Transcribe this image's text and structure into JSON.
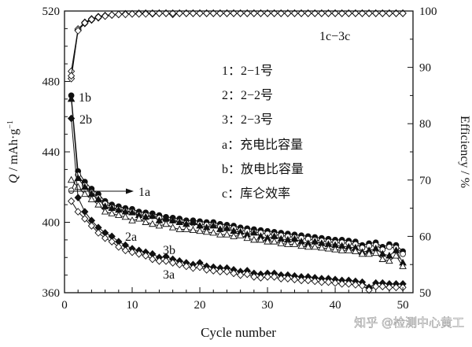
{
  "chart_data": {
    "type": "line",
    "xlabel": "Cycle number",
    "ylabel": "Q / mAh·g⁻¹",
    "ylabel_italic_part": "Q",
    "ylabel_rest": " / mAh·g",
    "ylabel_sup": "−1",
    "y2label": "Efficiency / %",
    "xlim": [
      0,
      51.5
    ],
    "ylim": [
      360,
      520
    ],
    "y2lim": [
      50,
      100
    ],
    "xticks": [
      0,
      10,
      20,
      30,
      40,
      50
    ],
    "yticks": [
      360,
      400,
      440,
      480,
      520
    ],
    "y2ticks": [
      50,
      60,
      70,
      80,
      90,
      100
    ],
    "grid": false,
    "legend": {
      "placement": "top-center",
      "items": [
        "1：2−1号",
        "2：2−2号",
        "3：2−3号",
        "a：充电比容量",
        "b：放电比容量",
        "c：库仑效率"
      ]
    },
    "annotations": {
      "1b": "1b",
      "2b": "2b",
      "1a": "1a",
      "2a": "2a",
      "3b": "3b",
      "3a": "3a",
      "c": "1c−3c"
    },
    "series": [
      {
        "name": "1b",
        "axis": "left",
        "marker": "circle-filled",
        "values": [
          472,
          429,
          423,
          419,
          416,
          412,
          410,
          409,
          408,
          407.5,
          406,
          405.5,
          405,
          404,
          403,
          402.5,
          402,
          401,
          401,
          400.5,
          400,
          400,
          399,
          398.5,
          398,
          397,
          396.5,
          396,
          395.5,
          395,
          394.5,
          394,
          393.5,
          393,
          392.5,
          392,
          391.5,
          391,
          390.5,
          390,
          390,
          389.5,
          389,
          387,
          388,
          388.5,
          386,
          387.5,
          387,
          383.5
        ]
      },
      {
        "name": "1a",
        "axis": "left",
        "marker": "circle-open",
        "values": [
          418,
          427,
          421,
          417,
          414,
          410.5,
          408.5,
          407.5,
          406.5,
          406,
          404.5,
          404,
          403.5,
          402.5,
          401.5,
          401,
          400.5,
          399.5,
          399.5,
          399,
          398.5,
          398.5,
          397.5,
          397,
          396.5,
          395.5,
          395,
          394.5,
          394,
          393.5,
          393,
          392.5,
          392,
          391.5,
          391,
          390.5,
          390,
          389.5,
          389,
          388.5,
          388.5,
          388,
          387.5,
          385.5,
          386.5,
          387,
          384.5,
          386,
          385.5,
          382
        ]
      },
      {
        "name": "2b",
        "axis": "left",
        "marker": "triangle-filled",
        "values": [
          470,
          425,
          420,
          416,
          413,
          409,
          408,
          407,
          406,
          405.5,
          404,
          403,
          403.5,
          401,
          402,
          401,
          400,
          399,
          400,
          398,
          397,
          398,
          396,
          396.5,
          395,
          394.5,
          393,
          394,
          392,
          391,
          392,
          390.5,
          390,
          390.5,
          389,
          388,
          389,
          388,
          387.5,
          387,
          386.5,
          386,
          385.5,
          383,
          384,
          385,
          382,
          381,
          384,
          377
        ]
      },
      {
        "name": "2a",
        "axis": "left",
        "marker": "triangle-open",
        "values": [
          424,
          420,
          416,
          413,
          410,
          406,
          405,
          404,
          403,
          401,
          402,
          400,
          399,
          398,
          399,
          397,
          396,
          396,
          395.5,
          395,
          394.5,
          394,
          393,
          393,
          392,
          392.5,
          391,
          390,
          390,
          389,
          389,
          388,
          387.5,
          387.5,
          386.5,
          386,
          386,
          385.5,
          385,
          384.5,
          384,
          384,
          383.5,
          382,
          382,
          382.5,
          379,
          378,
          381,
          375
        ]
      },
      {
        "name": "3b",
        "axis": "left",
        "marker": "diamond-filled",
        "values": [
          459,
          414,
          406,
          401,
          397,
          394,
          392,
          389,
          387,
          385,
          384,
          383,
          382,
          380,
          380.5,
          379,
          378,
          377,
          376,
          377,
          375,
          374.5,
          374,
          374,
          373,
          372,
          372.5,
          371,
          370.5,
          371,
          371,
          370,
          370,
          369.5,
          369,
          369,
          368.5,
          368,
          368,
          367.5,
          367,
          367,
          366.5,
          366,
          363,
          365.5,
          365.5,
          365,
          365,
          365
        ]
      },
      {
        "name": "3a",
        "axis": "left",
        "marker": "diamond-open",
        "values": [
          412,
          406,
          402,
          398,
          394,
          391,
          389,
          386,
          384,
          383,
          382,
          381,
          379,
          378,
          378,
          377,
          376,
          375,
          374,
          374.5,
          373,
          372.5,
          372,
          372,
          371,
          370,
          370.5,
          369,
          368.5,
          369,
          369,
          368,
          368,
          367.5,
          367,
          367,
          366.5,
          366,
          366,
          365.5,
          365,
          365,
          364.5,
          364,
          361.5,
          363.5,
          363.5,
          363,
          363,
          363
        ]
      },
      {
        "name": "1c",
        "axis": "right",
        "marker": "diamond-open",
        "values": [
          88,
          96.6,
          97.8,
          98.4,
          98.8,
          99.1,
          99.3,
          99.4,
          99.5,
          99.5,
          99.5,
          99.6,
          99.5,
          99.6,
          99.6,
          99.6,
          99.6,
          99.6,
          99.6,
          99.6,
          99.6,
          99.6,
          99.6,
          99.6,
          99.6,
          99.6,
          99.6,
          99.6,
          99.6,
          99.6,
          99.6,
          99.6,
          99.6,
          99.6,
          99.6,
          99.6,
          99.6,
          99.6,
          99.6,
          99.6,
          99.6,
          99.6,
          99.6,
          99.6,
          99.6,
          99.6,
          99.6,
          99.6,
          99.6,
          99.6
        ]
      },
      {
        "name": "2c",
        "axis": "right",
        "marker": "diamond-open",
        "values": [
          89.3,
          96.8,
          98,
          98.6,
          99,
          99.2,
          99.3,
          99.4,
          99.5,
          99.5,
          99.6,
          99.6,
          99.6,
          99.6,
          99.6,
          99.4,
          99.6,
          99.6,
          99.6,
          99.6,
          99.6,
          99.6,
          99.6,
          99.6,
          99.6,
          99.6,
          99.6,
          99.6,
          99.6,
          99.6,
          99.6,
          99.6,
          99.6,
          99.6,
          99.6,
          99.6,
          99.6,
          99.6,
          99.6,
          99.6,
          99.6,
          99.6,
          99.6,
          99.6,
          99.6,
          99.6,
          99.6,
          99.6,
          99.6,
          99.6
        ]
      },
      {
        "name": "3c",
        "axis": "right",
        "marker": "diamond-open",
        "values": [
          88.5,
          96.5,
          97.9,
          98.5,
          98.9,
          99.1,
          99.3,
          99.4,
          99.4,
          99.5,
          99.5,
          99.5,
          99.6,
          99.6,
          99.6,
          99.6,
          99.6,
          99.6,
          99.6,
          99.6,
          99.6,
          99.6,
          99.6,
          99.6,
          99.6,
          99.6,
          99.6,
          99.6,
          99.6,
          99.6,
          99.6,
          99.6,
          99.6,
          99.6,
          99.6,
          99.6,
          99.6,
          99.6,
          99.6,
          99.6,
          99.6,
          99.6,
          99.6,
          99.6,
          99.6,
          99.6,
          99.6,
          99.6,
          99.6,
          99.6
        ]
      }
    ]
  },
  "watermark": "知乎 @检测中心黄工"
}
